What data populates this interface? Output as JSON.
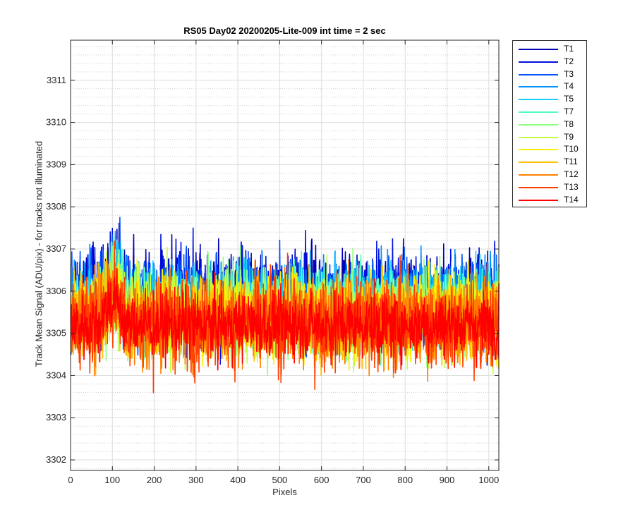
{
  "chart_data": {
    "type": "line",
    "title": "RS05 Day02 20200205-Lite-009 int time = 2 sec",
    "xlabel": "Pixels",
    "ylabel": "Track Mean Signal (ADU/pix) - for tracks not illuminated",
    "xlim": [
      0,
      1024
    ],
    "ylim": [
      3301.75,
      3311.95
    ],
    "xticks": [
      0,
      100,
      200,
      300,
      400,
      500,
      600,
      700,
      800,
      900,
      1000
    ],
    "yticks": [
      3302,
      3303,
      3304,
      3305,
      3306,
      3307,
      3308,
      3309,
      3310,
      3311
    ],
    "grid": true,
    "minor_grid": true,
    "legend_position": "outside top-right",
    "x": "pixel index 1 to 1024, one sample per pixel",
    "series": [
      {
        "name": "T1",
        "color": "#0000B4",
        "mean": 3305.9,
        "std": 0.95
      },
      {
        "name": "T2",
        "color": "#0010DE",
        "mean": 3305.85,
        "std": 0.95
      },
      {
        "name": "T3",
        "color": "#0050FF",
        "mean": 3305.8,
        "std": 0.9
      },
      {
        "name": "T4",
        "color": "#0090FF",
        "mean": 3305.75,
        "std": 0.9
      },
      {
        "name": "T5",
        "color": "#10D0FF",
        "mean": 3305.7,
        "std": 0.9
      },
      {
        "name": "T7",
        "color": "#50FFC0",
        "mean": 3305.6,
        "std": 0.9
      },
      {
        "name": "T8",
        "color": "#90FF80",
        "mean": 3305.5,
        "std": 0.9
      },
      {
        "name": "T9",
        "color": "#C0FF40",
        "mean": 3305.45,
        "std": 0.9
      },
      {
        "name": "T10",
        "color": "#FFF000",
        "mean": 3305.4,
        "std": 0.9
      },
      {
        "name": "T11",
        "color": "#FFC000",
        "mean": 3305.35,
        "std": 0.9
      },
      {
        "name": "T12",
        "color": "#FF8000",
        "mean": 3305.3,
        "std": 0.95
      },
      {
        "name": "T13",
        "color": "#FF4000",
        "mean": 3305.25,
        "std": 0.95
      },
      {
        "name": "T14",
        "color": "#FF0000",
        "mean": 3305.2,
        "std": 0.7
      }
    ]
  }
}
